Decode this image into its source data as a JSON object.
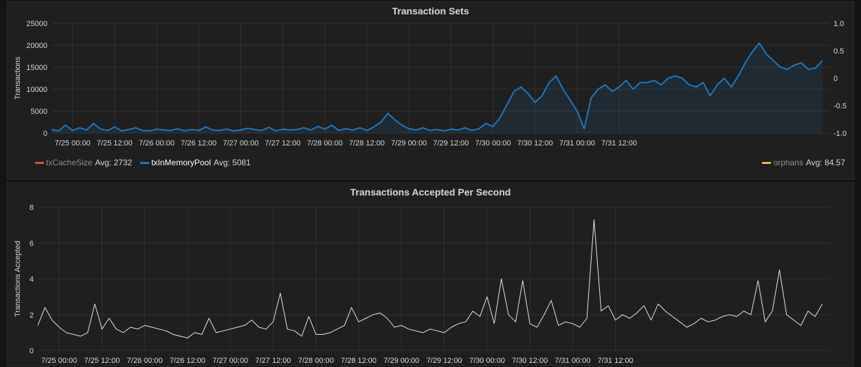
{
  "chart_data": [
    {
      "type": "area",
      "title": "Transaction Sets",
      "ylabel": "Transactions",
      "ylim": [
        0,
        25000
      ],
      "yticks": [
        0,
        5000,
        10000,
        15000,
        20000,
        25000
      ],
      "y2lim": [
        -1.0,
        1.0
      ],
      "y2ticks": [
        "-1.0",
        "-0.5",
        "0",
        "0.5",
        "1.0"
      ],
      "x_tick_labels": [
        "7/25 00:00",
        "7/25 12:00",
        "7/26 00:00",
        "7/26 12:00",
        "7/27 00:00",
        "7/27 12:00",
        "7/28 00:00",
        "7/28 12:00",
        "7/29 00:00",
        "7/29 12:00",
        "7/30 00:00",
        "7/30 12:00",
        "7/31 00:00",
        "7/31 12:00"
      ],
      "x_unit": "hours from 7/24 18:00",
      "grid": true,
      "legend_position": "bottom",
      "series": [
        {
          "name": "txCacheSize",
          "color": "#e24d42",
          "avg": "Avg: 2732",
          "x": [],
          "y": []
        },
        {
          "name": "txInMemoryPool",
          "color": "#1f78c1",
          "avg": "Avg: 5081",
          "x": [
            0,
            2,
            4,
            6,
            8,
            10,
            12,
            14,
            16,
            18,
            20,
            22,
            24,
            26,
            28,
            30,
            32,
            34,
            36,
            38,
            40,
            42,
            44,
            46,
            48,
            50,
            52,
            54,
            56,
            58,
            60,
            62,
            64,
            66,
            68,
            70,
            72,
            74,
            76,
            78,
            80,
            82,
            84,
            86,
            88,
            90,
            92,
            94,
            96,
            98,
            100,
            102,
            104,
            106,
            108,
            110,
            112,
            114,
            116,
            118,
            120,
            122,
            124,
            126,
            128,
            130,
            132,
            134,
            136,
            138,
            140,
            142,
            144,
            146,
            148,
            150,
            152,
            154,
            156,
            158,
            160,
            162,
            164,
            166,
            168,
            170,
            172,
            174,
            176,
            178,
            180,
            182,
            184,
            186,
            188,
            190,
            192,
            194,
            196,
            198,
            200,
            202,
            204,
            206,
            208,
            210,
            212,
            214,
            216,
            218,
            220
          ],
          "y": [
            800,
            500,
            1800,
            600,
            1200,
            700,
            2200,
            900,
            600,
            1400,
            500,
            800,
            1200,
            600,
            500,
            900,
            700,
            600,
            1000,
            500,
            800,
            600,
            1400,
            700,
            600,
            900,
            500,
            700,
            1100,
            800,
            600,
            1300,
            500,
            900,
            700,
            800,
            1200,
            700,
            1500,
            900,
            1800,
            600,
            1000,
            700,
            1200,
            600,
            1400,
            2500,
            4500,
            3000,
            1800,
            1000,
            700,
            1200,
            600,
            800,
            500,
            900,
            700,
            1200,
            600,
            1000,
            2200,
            1500,
            3500,
            6500,
            9500,
            10500,
            9000,
            7000,
            8500,
            11500,
            13000,
            10000,
            7500,
            5000,
            1000,
            8000,
            10000,
            11000,
            9500,
            10500,
            12000,
            10000,
            11500,
            11500,
            12000,
            11000,
            12500,
            13000,
            12500,
            11000,
            10500,
            11500,
            8500,
            11000,
            12500,
            10500,
            13000,
            16000,
            18500,
            20500,
            18000,
            16500,
            15000,
            14500,
            15500,
            16000,
            14500,
            14800,
            16500
          ]
        },
        {
          "name": "orphans",
          "color": "#eab839",
          "avg": "Avg: 84.57",
          "x": [],
          "y": []
        }
      ]
    },
    {
      "type": "line",
      "title": "Transactions Accepted Per Second",
      "ylabel": "Transactions Accepted",
      "ylim": [
        0,
        8
      ],
      "yticks": [
        0,
        2,
        4,
        6,
        8
      ],
      "x_tick_labels": [
        "7/25 00:00",
        "7/25 12:00",
        "7/26 00:00",
        "7/26 12:00",
        "7/27 00:00",
        "7/27 12:00",
        "7/28 00:00",
        "7/28 12:00",
        "7/29 00:00",
        "7/29 12:00",
        "7/30 00:00",
        "7/30 12:00",
        "7/31 00:00",
        "7/31 12:00"
      ],
      "x_unit": "hours from 7/24 18:00",
      "grid": true,
      "series": [
        {
          "color": "#e5e5f5",
          "x": [
            0,
            2,
            4,
            6,
            8,
            10,
            12,
            14,
            16,
            18,
            20,
            22,
            24,
            26,
            28,
            30,
            32,
            34,
            36,
            38,
            40,
            42,
            44,
            46,
            48,
            50,
            52,
            54,
            56,
            58,
            60,
            62,
            64,
            66,
            68,
            70,
            72,
            74,
            76,
            78,
            80,
            82,
            84,
            86,
            88,
            90,
            92,
            94,
            96,
            98,
            100,
            102,
            104,
            106,
            108,
            110,
            112,
            114,
            116,
            118,
            120,
            122,
            124,
            126,
            128,
            130,
            132,
            134,
            136,
            138,
            140,
            142,
            144,
            146,
            148,
            150,
            152,
            154,
            156,
            158,
            160,
            162,
            164,
            166,
            168,
            170,
            172,
            174,
            176,
            178,
            180,
            182,
            184,
            186,
            188,
            190,
            192,
            194,
            196,
            198,
            200,
            202,
            204,
            206,
            208,
            210,
            212,
            214,
            216,
            218,
            220
          ],
          "y": [
            1.4,
            2.4,
            1.7,
            1.3,
            1.0,
            0.9,
            0.8,
            1.0,
            2.6,
            1.2,
            1.8,
            1.2,
            1.0,
            1.3,
            1.2,
            1.4,
            1.3,
            1.2,
            1.1,
            0.9,
            0.8,
            0.7,
            1.0,
            0.9,
            1.8,
            1.0,
            1.1,
            1.2,
            1.3,
            1.4,
            1.7,
            1.3,
            1.2,
            1.6,
            3.2,
            1.2,
            1.1,
            0.8,
            1.9,
            0.9,
            0.9,
            1.0,
            1.2,
            1.4,
            2.4,
            1.6,
            1.8,
            2.0,
            2.1,
            1.8,
            1.3,
            1.4,
            1.2,
            1.1,
            1.0,
            1.2,
            1.1,
            1.0,
            1.3,
            1.5,
            1.6,
            2.2,
            1.9,
            3.0,
            1.5,
            4.0,
            2.0,
            1.6,
            3.9,
            1.5,
            1.3,
            2.0,
            2.8,
            1.4,
            1.6,
            1.5,
            1.3,
            1.8,
            7.3,
            2.2,
            2.5,
            1.7,
            2.0,
            1.8,
            2.1,
            2.5,
            1.7,
            2.6,
            2.2,
            1.9,
            1.6,
            1.3,
            1.5,
            1.8,
            1.6,
            1.7,
            1.9,
            2.0,
            1.9,
            2.2,
            2.0,
            3.9,
            1.6,
            2.2,
            4.5,
            2.0,
            1.7,
            1.4,
            2.2,
            1.9,
            2.6
          ]
        }
      ]
    }
  ],
  "legend": {
    "txCacheSize": {
      "name": "txCacheSize",
      "avg": "Avg: 2732"
    },
    "txInMemoryPool": {
      "name": "txInMemoryPool",
      "avg": "Avg: 5081"
    },
    "orphans": {
      "name": "orphans",
      "avg": "Avg: 84.57"
    }
  }
}
